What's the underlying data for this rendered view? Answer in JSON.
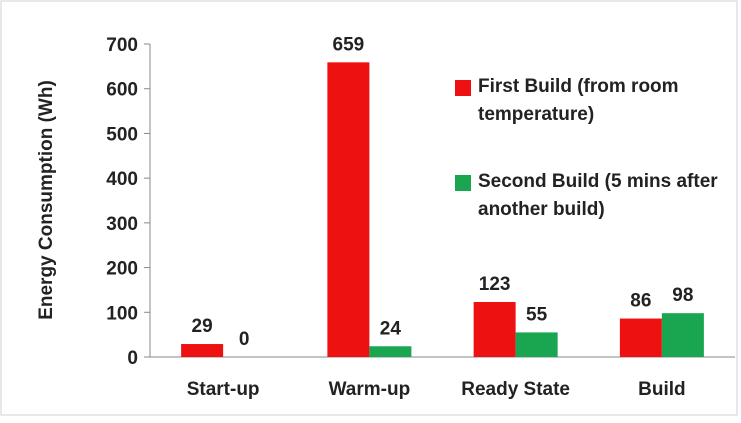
{
  "chart_data": {
    "type": "bar",
    "ylabel": "Energy Consumption (Wh)",
    "categories": [
      "Start-up",
      "Warm-up",
      "Ready State",
      "Build"
    ],
    "series": [
      {
        "name": "First Build (from room temperature)",
        "color": "#ee1111",
        "values": [
          29,
          659,
          123,
          86
        ]
      },
      {
        "name": "Second Build (5 mins after another build)",
        "color": "#1aa550",
        "values": [
          0,
          24,
          55,
          98
        ]
      }
    ],
    "ylim": [
      0,
      700
    ],
    "yticks": [
      0,
      100,
      200,
      300,
      400,
      500,
      600,
      700
    ],
    "legend": "upper right"
  }
}
